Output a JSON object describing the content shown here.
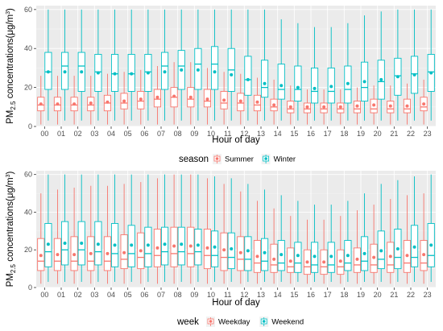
{
  "chart_data": [
    {
      "type": "box",
      "panel": "top",
      "xlabel": "Hour of day",
      "ylabel": "PM2.5 concentrations(μg/m3)",
      "ylim": [
        0,
        62
      ],
      "yticks": [
        0,
        20,
        40,
        60
      ],
      "categories": [
        "00",
        "01",
        "02",
        "03",
        "04",
        "05",
        "06",
        "07",
        "08",
        "09",
        "10",
        "11",
        "12",
        "13",
        "14",
        "15",
        "16",
        "17",
        "18",
        "19",
        "20",
        "21",
        "22",
        "23"
      ],
      "legend": {
        "title": "season",
        "position": "bottom"
      },
      "series": [
        {
          "name": "Summer",
          "color": "#f8766d",
          "whisker_low": [
            1,
            1,
            1,
            1,
            1,
            1,
            1,
            1,
            1,
            1,
            1,
            1,
            1,
            1,
            1,
            1,
            1,
            1,
            1,
            1,
            1,
            1,
            1,
            1
          ],
          "q1": [
            8,
            8,
            8,
            8,
            8,
            9,
            9,
            10,
            10,
            10,
            10,
            9,
            8,
            8,
            8,
            7,
            7,
            7,
            7,
            7,
            7,
            7,
            7,
            8
          ],
          "median": [
            11,
            11,
            11,
            11,
            12,
            12,
            13,
            14,
            15,
            14,
            13,
            12,
            12,
            11,
            10,
            9,
            9,
            9,
            9,
            9,
            9,
            9,
            9,
            10
          ],
          "q3": [
            15,
            15,
            15,
            15,
            16,
            17,
            18,
            19,
            20,
            20,
            19,
            18,
            17,
            16,
            14,
            13,
            12,
            12,
            12,
            13,
            14,
            13,
            14,
            15
          ],
          "whisker_high": [
            26,
            26,
            26,
            26,
            27,
            28,
            29,
            31,
            33,
            33,
            30,
            28,
            27,
            25,
            24,
            21,
            19,
            19,
            19,
            20,
            21,
            21,
            22,
            24
          ],
          "mean": [
            11.5,
            11.5,
            11.5,
            12,
            12.5,
            13,
            14,
            15,
            15.5,
            15,
            14,
            13.5,
            13,
            12.5,
            11,
            10,
            10,
            10,
            10,
            10.5,
            11,
            10.5,
            10.5,
            11.5
          ]
        },
        {
          "name": "Winter",
          "color": "#00bfc4",
          "whisker_low": [
            3,
            3,
            3,
            3,
            3,
            3,
            3,
            3,
            3,
            3,
            3,
            3,
            3,
            3,
            3,
            3,
            3,
            3,
            3,
            3,
            3,
            3,
            3,
            3
          ],
          "q1": [
            19,
            19,
            18,
            18,
            18,
            18,
            18,
            19,
            19,
            19,
            19,
            18,
            16,
            15,
            14,
            13,
            12,
            12,
            12,
            13,
            14,
            16,
            17,
            18
          ],
          "median": [
            28,
            31,
            31,
            28,
            27,
            27,
            28,
            31,
            31,
            32,
            32,
            29,
            24,
            20,
            19,
            19,
            18,
            18,
            19,
            20,
            23,
            26,
            27,
            28
          ],
          "q3": [
            38,
            38,
            38,
            37,
            37,
            37,
            37,
            38,
            39,
            40,
            41,
            40,
            36,
            34,
            32,
            31,
            30,
            30,
            31,
            33,
            34,
            35,
            36,
            37
          ],
          "whisker_high": [
            60,
            60,
            60,
            60,
            60,
            60,
            60,
            60,
            60,
            60,
            60,
            60,
            60,
            60,
            55,
            53,
            51,
            51,
            53,
            57,
            59,
            60,
            60,
            60
          ],
          "mean": [
            28,
            28,
            28,
            27.5,
            27,
            27,
            27.5,
            28,
            29,
            29,
            28,
            26.5,
            24,
            22,
            21,
            20,
            19.5,
            20.5,
            22,
            23,
            24,
            25.5,
            26.5,
            27.5
          ]
        }
      ]
    },
    {
      "type": "box",
      "panel": "bottom",
      "xlabel": "Hour of day",
      "ylabel": "PM2.5 concentrations(μg/m3)",
      "ylim": [
        0,
        62
      ],
      "yticks": [
        0,
        20,
        40,
        60
      ],
      "categories": [
        "00",
        "01",
        "02",
        "03",
        "04",
        "05",
        "06",
        "07",
        "08",
        "09",
        "10",
        "11",
        "12",
        "13",
        "14",
        "15",
        "16",
        "17",
        "18",
        "19",
        "20",
        "21",
        "22",
        "23"
      ],
      "legend": {
        "title": "week",
        "position": "bottom"
      },
      "series": [
        {
          "name": "Weekday",
          "color": "#f8766d",
          "whisker_low": [
            2,
            2,
            2,
            2,
            2,
            2,
            2,
            2,
            2,
            2,
            2,
            2,
            2,
            2,
            2,
            2,
            2,
            2,
            2,
            2,
            2,
            2,
            2,
            2
          ],
          "q1": [
            9,
            9,
            9,
            9,
            9,
            10,
            10,
            11,
            11,
            11,
            10,
            9,
            9,
            8,
            8,
            8,
            7,
            7,
            7,
            8,
            8,
            8,
            8,
            9
          ],
          "median": [
            14,
            14,
            14,
            14,
            14,
            15,
            16,
            17,
            18,
            18,
            17,
            16,
            15,
            13,
            12,
            11,
            11,
            11,
            11,
            12,
            12,
            12,
            13,
            13
          ],
          "q3": [
            26,
            26,
            27,
            27,
            27,
            28,
            29,
            31,
            32,
            32,
            31,
            29,
            27,
            25,
            23,
            21,
            20,
            20,
            20,
            21,
            23,
            24,
            25,
            25
          ],
          "whisker_high": [
            50,
            52,
            53,
            54,
            54,
            55,
            56,
            58,
            60,
            60,
            58,
            55,
            51,
            46,
            42,
            38,
            36,
            36,
            38,
            41,
            44,
            47,
            49,
            50
          ],
          "mean": [
            17,
            17.5,
            17.5,
            18,
            18,
            18.5,
            19.5,
            21,
            22,
            22,
            21,
            20,
            18.5,
            16.5,
            15,
            14,
            13.5,
            13.5,
            14,
            15,
            16,
            16.5,
            17,
            17.5
          ]
        },
        {
          "name": "Weekend",
          "color": "#00bfc4",
          "whisker_low": [
            3,
            3,
            3,
            3,
            3,
            3,
            3,
            3,
            3,
            3,
            3,
            3,
            3,
            3,
            3,
            3,
            3,
            3,
            3,
            3,
            3,
            3,
            3,
            3
          ],
          "q1": [
            11,
            12,
            12,
            12,
            11,
            11,
            11,
            12,
            12,
            12,
            11,
            10,
            9,
            9,
            9,
            8,
            8,
            8,
            9,
            9,
            10,
            10,
            11,
            11
          ],
          "median": [
            19,
            20,
            20,
            19,
            18,
            18,
            18,
            19,
            19,
            19,
            17,
            16,
            15,
            14,
            13,
            13,
            12,
            12,
            13,
            14,
            15,
            16,
            16,
            17
          ],
          "q3": [
            34,
            35,
            35,
            35,
            34,
            33,
            32,
            32,
            32,
            31,
            30,
            29,
            27,
            26,
            25,
            24,
            24,
            24,
            25,
            27,
            30,
            31,
            33,
            34
          ],
          "whisker_high": [
            60,
            60,
            60,
            60,
            60,
            60,
            60,
            60,
            60,
            60,
            59,
            58,
            55,
            52,
            49,
            46,
            44,
            44,
            46,
            50,
            55,
            57,
            59,
            60
          ],
          "mean": [
            23,
            23.5,
            23.5,
            23,
            22.5,
            22.5,
            22.5,
            23,
            23,
            22.5,
            21.5,
            20.5,
            19.5,
            18.5,
            17.5,
            17,
            16.5,
            16.5,
            17,
            18,
            19.5,
            20.5,
            21.5,
            22.5
          ]
        }
      ]
    }
  ]
}
